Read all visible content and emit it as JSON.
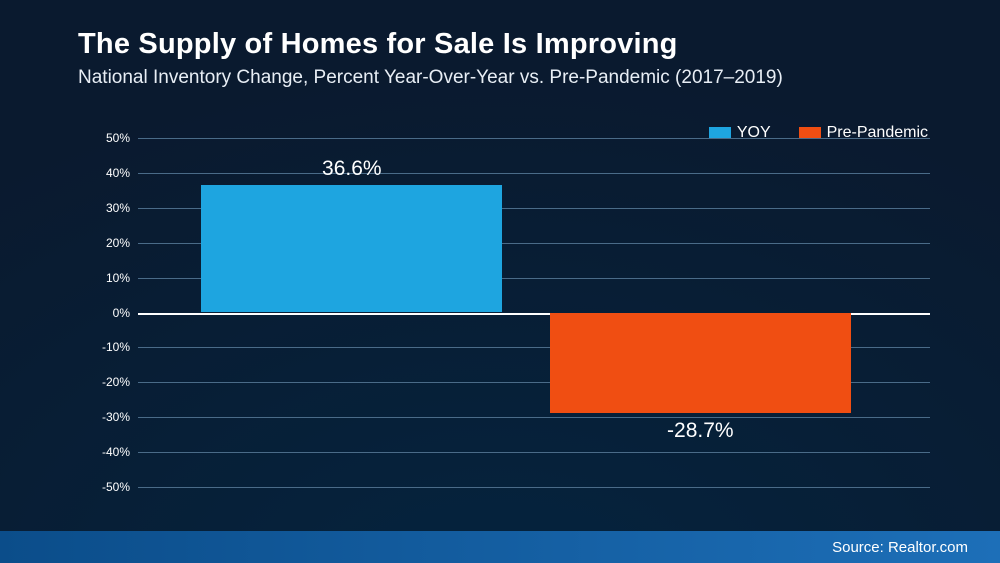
{
  "background": {
    "gradient_top": "#0a1a2f",
    "gradient_bottom": "#04243f",
    "footer_gradient_left": "#0b4d8a",
    "footer_gradient_right": "#1d6fb8"
  },
  "title": "The Supply of Homes for Sale Is Improving",
  "subtitle": "National Inventory Change, Percent Year-Over-Year vs. Pre-Pandemic (2017–2019)",
  "source_label": "Source: Realtor.com",
  "chart": {
    "type": "bar",
    "y_min": -50,
    "y_max": 50,
    "y_tick_step": 10,
    "y_tick_suffix": "%",
    "grid_color": "#4a6b88",
    "zero_line_color": "#ffffff",
    "axis_label_color": "#ffffff",
    "axis_label_fontsize": 12,
    "data_label_fontsize": 21,
    "bars": [
      {
        "key": "yoy",
        "label": "YOY",
        "value": 36.6,
        "value_label": "36.6%",
        "color": "#1ea5e0",
        "x_start_pct": 8,
        "width_pct": 38
      },
      {
        "key": "prepandemic",
        "label": "Pre-Pandemic",
        "value": -28.7,
        "value_label": "-28.7%",
        "color": "#f04e12",
        "x_start_pct": 52,
        "width_pct": 38
      }
    ],
    "legend": {
      "position": "top-right",
      "items": [
        {
          "label": "YOY",
          "color": "#1ea5e0"
        },
        {
          "label": "Pre-Pandemic",
          "color": "#f04e12"
        }
      ]
    }
  }
}
